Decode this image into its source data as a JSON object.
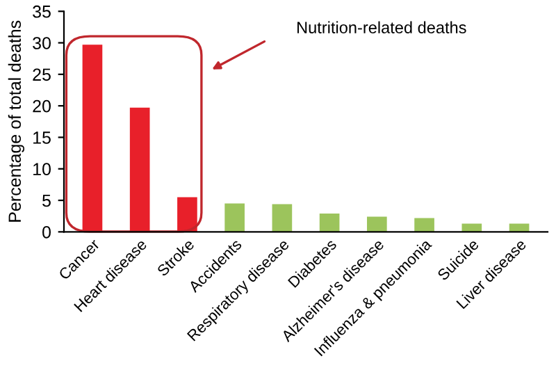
{
  "chart_data": {
    "type": "bar",
    "ylabel": "Percentage of total deaths",
    "categories": [
      "Cancer",
      "Heart disease",
      "Stroke",
      "Accidents",
      "Respiratory disease",
      "Diabetes",
      "Alzheimer's disease",
      "Influenza & pneumonia",
      "Suicide",
      "Liver disease"
    ],
    "values": [
      29.7,
      19.7,
      5.5,
      4.5,
      4.4,
      2.9,
      2.4,
      2.2,
      1.3,
      1.3
    ],
    "colors": [
      "#e8202a",
      "#e8202a",
      "#e8202a",
      "#9cc45c",
      "#9cc45c",
      "#9cc45c",
      "#9cc45c",
      "#9cc45c",
      "#9cc45c",
      "#9cc45c"
    ],
    "ylim": [
      0,
      35
    ],
    "yticks": [
      0,
      5,
      10,
      15,
      20,
      25,
      30,
      35
    ],
    "grid": false,
    "annotations": [
      "Nutrition-related deaths"
    ]
  }
}
